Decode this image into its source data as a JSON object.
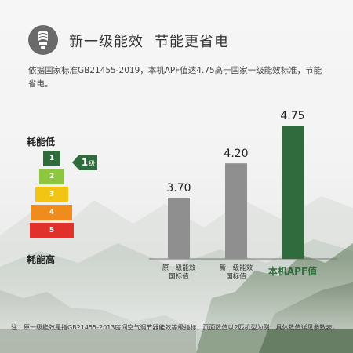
{
  "header": {
    "title_part1": "新一级能效",
    "title_part2": "节能更省电",
    "icon": "energy-saving-bulb-icon"
  },
  "description": "依据国家标准GB21455-2019，本机APF值达4.75高于国家一级能效标准，节能省电。",
  "energy_scale": {
    "top_label": "耗能低",
    "bottom_label": "耗能高",
    "levels": [
      {
        "label": "1",
        "color": "#2f6b3c"
      },
      {
        "label": "2",
        "color": "#8dc63f"
      },
      {
        "label": "3",
        "color": "#f2c515"
      },
      {
        "label": "4",
        "color": "#f08b1d"
      },
      {
        "label": "5",
        "color": "#e0312b"
      }
    ],
    "current_level_number": "1",
    "current_level_unit": "级"
  },
  "chart_data": {
    "type": "bar",
    "categories": [
      "原一级能效\n国标值",
      "新一级能效\n国标值",
      "本机APF值"
    ],
    "values": [
      3.7,
      4.2,
      4.75
    ],
    "value_labels": [
      "3.70",
      "4.20",
      "4.75"
    ],
    "colors": [
      "#8f8f8f",
      "#8f8f8f",
      "#2f6b3c"
    ],
    "category_label_colors": [
      "#333333",
      "#333333",
      "#2f6b3c"
    ],
    "ylim": [
      0,
      5
    ],
    "title": "",
    "xlabel": "",
    "ylabel": "",
    "grid": false
  },
  "footnote": "注：原一级能效是指GB21455-2013房间空气调节器能效等级指标，页面数值以2匹机型为例，具体数值详见参数表。"
}
